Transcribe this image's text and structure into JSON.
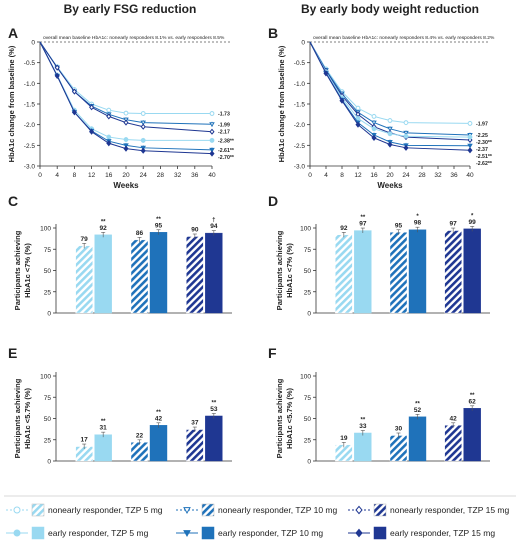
{
  "headings": {
    "left": "By early FSG reduction",
    "right": "By early body weight reduction"
  },
  "colors": {
    "tzp5": "#99d9f1",
    "tzp10": "#1f72ba",
    "tzp15": "#1f3792",
    "axis": "#333333",
    "text": "#222222"
  },
  "legend": [
    {
      "label": "nonearly responder, TZP 5 mg",
      "dose": "tzp5",
      "group": "nonearly",
      "marker": "circle"
    },
    {
      "label": "nonearly responder, TZP 10 mg",
      "dose": "tzp10",
      "group": "nonearly",
      "marker": "triangle"
    },
    {
      "label": "nonearly responder, TZP 15 mg",
      "dose": "tzp15",
      "group": "nonearly",
      "marker": "diamond"
    },
    {
      "label": "early responder, TZP 5 mg",
      "dose": "tzp5",
      "group": "early",
      "marker": "circle"
    },
    {
      "label": "early responder, TZP 10 mg",
      "dose": "tzp10",
      "group": "early",
      "marker": "triangle"
    },
    {
      "label": "early responder, TZP 15 mg",
      "dose": "tzp15",
      "group": "early",
      "marker": "diamond"
    }
  ],
  "chart_data": [
    {
      "panel": "A",
      "type": "line",
      "title": "By early FSG reduction",
      "xlabel": "Weeks",
      "ylabel": "HbA1c change from baseline (%)",
      "annotation": "overall mean baseline HbA1c: nonearly responders 8.1% vs. early responders 8.5%",
      "x": [
        0,
        4,
        8,
        12,
        16,
        20,
        24,
        28,
        32,
        36,
        40
      ],
      "xlim": [
        0,
        40
      ],
      "ylim": [
        -3.0,
        0
      ],
      "yticks": [
        0,
        -0.5,
        -1.0,
        -1.5,
        -2.0,
        -2.5,
        -3.0
      ],
      "series": [
        {
          "dose": "tzp5",
          "group": "nonearly",
          "x": [
            0,
            4,
            8,
            12,
            16,
            20,
            24,
            40
          ],
          "y": [
            0,
            -0.6,
            -1.15,
            -1.5,
            -1.65,
            -1.72,
            -1.73,
            -1.73
          ],
          "end_label": "-1.73"
        },
        {
          "dose": "tzp10",
          "group": "nonearly",
          "x": [
            0,
            4,
            8,
            12,
            16,
            20,
            24,
            40
          ],
          "y": [
            0,
            -0.62,
            -1.2,
            -1.55,
            -1.75,
            -1.88,
            -1.95,
            -1.99
          ],
          "end_label": "-1.99"
        },
        {
          "dose": "tzp15",
          "group": "nonearly",
          "x": [
            0,
            4,
            8,
            12,
            16,
            20,
            24,
            40
          ],
          "y": [
            0,
            -0.62,
            -1.2,
            -1.58,
            -1.8,
            -1.95,
            -2.05,
            -2.17
          ],
          "end_label": "-2.17"
        },
        {
          "dose": "tzp5",
          "group": "early",
          "x": [
            0,
            4,
            8,
            12,
            16,
            20,
            24,
            40
          ],
          "y": [
            0,
            -0.8,
            -1.65,
            -2.1,
            -2.3,
            -2.36,
            -2.38,
            -2.38
          ],
          "end_label": "-2.38**"
        },
        {
          "dose": "tzp10",
          "group": "early",
          "x": [
            0,
            4,
            8,
            12,
            16,
            20,
            24,
            40
          ],
          "y": [
            0,
            -0.82,
            -1.7,
            -2.15,
            -2.4,
            -2.5,
            -2.56,
            -2.61
          ],
          "end_label": "-2.61**"
        },
        {
          "dose": "tzp15",
          "group": "early",
          "x": [
            0,
            4,
            8,
            12,
            16,
            20,
            24,
            40
          ],
          "y": [
            0,
            -0.82,
            -1.7,
            -2.17,
            -2.45,
            -2.58,
            -2.63,
            -2.7
          ],
          "end_label": "-2.70**"
        }
      ]
    },
    {
      "panel": "B",
      "type": "line",
      "title": "By early body weight reduction",
      "xlabel": "Weeks",
      "ylabel": "HbA1c change from baseline (%)",
      "annotation": "overall mean baseline HbA1c: nonearly responders 8.4% vs. early responders 8.2%",
      "x": [
        0,
        4,
        8,
        12,
        16,
        20,
        24,
        28,
        32,
        36,
        40
      ],
      "xlim": [
        0,
        40
      ],
      "ylim": [
        -3.0,
        0
      ],
      "yticks": [
        0,
        -0.5,
        -1.0,
        -1.5,
        -2.0,
        -2.5,
        -3.0
      ],
      "series": [
        {
          "dose": "tzp5",
          "group": "nonearly",
          "x": [
            0,
            4,
            8,
            12,
            16,
            20,
            24,
            40
          ],
          "y": [
            0,
            -0.65,
            -1.2,
            -1.6,
            -1.8,
            -1.9,
            -1.95,
            -1.97
          ],
          "end_label": "-1.97"
        },
        {
          "dose": "tzp10",
          "group": "nonearly",
          "x": [
            0,
            4,
            8,
            12,
            16,
            20,
            24,
            40
          ],
          "y": [
            0,
            -0.68,
            -1.25,
            -1.7,
            -1.95,
            -2.1,
            -2.2,
            -2.25
          ],
          "end_label": "-2.25"
        },
        {
          "dose": "tzp15",
          "group": "nonearly",
          "x": [
            0,
            4,
            8,
            12,
            16,
            20,
            24,
            40
          ],
          "y": [
            0,
            -0.7,
            -1.3,
            -1.75,
            -2.05,
            -2.2,
            -2.3,
            -2.37
          ],
          "end_label": "-2.37"
        },
        {
          "dose": "tzp5",
          "group": "early",
          "x": [
            0,
            4,
            8,
            12,
            16,
            20,
            24,
            40
          ],
          "y": [
            0,
            -0.72,
            -1.35,
            -1.85,
            -2.1,
            -2.22,
            -2.28,
            -2.3
          ],
          "end_label": "-2.30**"
        },
        {
          "dose": "tzp10",
          "group": "early",
          "x": [
            0,
            4,
            8,
            12,
            16,
            20,
            24,
            40
          ],
          "y": [
            0,
            -0.75,
            -1.4,
            -1.95,
            -2.25,
            -2.42,
            -2.5,
            -2.51
          ],
          "end_label": "-2.51**"
        },
        {
          "dose": "tzp15",
          "group": "early",
          "x": [
            0,
            4,
            8,
            12,
            16,
            20,
            24,
            40
          ],
          "y": [
            0,
            -0.76,
            -1.42,
            -2.0,
            -2.32,
            -2.48,
            -2.56,
            -2.62
          ],
          "end_label": "-2.62**"
        }
      ]
    },
    {
      "panel": "C",
      "type": "bar",
      "ylabel": "Participants achieving HbA1c <7% (%)",
      "ylim": [
        0,
        100
      ],
      "yticks": [
        0,
        25,
        50,
        75,
        100
      ],
      "groups": [
        "TZP 5 mg",
        "TZP 10 mg",
        "TZP 15 mg"
      ],
      "bars": [
        {
          "dose": "tzp5",
          "group": "nonearly",
          "value": 79,
          "label": "79",
          "sig": ""
        },
        {
          "dose": "tzp5",
          "group": "early",
          "value": 92,
          "label": "92",
          "sig": "**"
        },
        {
          "dose": "tzp10",
          "group": "nonearly",
          "value": 86,
          "label": "86",
          "sig": ""
        },
        {
          "dose": "tzp10",
          "group": "early",
          "value": 95,
          "label": "95",
          "sig": "**"
        },
        {
          "dose": "tzp15",
          "group": "nonearly",
          "value": 90,
          "label": "90",
          "sig": ""
        },
        {
          "dose": "tzp15",
          "group": "early",
          "value": 94,
          "label": "94",
          "sig": "†"
        }
      ]
    },
    {
      "panel": "D",
      "type": "bar",
      "ylabel": "Participants achieving HbA1c <7% (%)",
      "ylim": [
        0,
        100
      ],
      "yticks": [
        0,
        25,
        50,
        75,
        100
      ],
      "groups": [
        "TZP 5 mg",
        "TZP 10 mg",
        "TZP 15 mg"
      ],
      "bars": [
        {
          "dose": "tzp5",
          "group": "nonearly",
          "value": 92,
          "label": "92",
          "sig": ""
        },
        {
          "dose": "tzp5",
          "group": "early",
          "value": 97,
          "label": "97",
          "sig": "**"
        },
        {
          "dose": "tzp10",
          "group": "nonearly",
          "value": 95,
          "label": "95",
          "sig": ""
        },
        {
          "dose": "tzp10",
          "group": "early",
          "value": 98,
          "label": "98",
          "sig": "*"
        },
        {
          "dose": "tzp15",
          "group": "nonearly",
          "value": 97,
          "label": "97",
          "sig": ""
        },
        {
          "dose": "tzp15",
          "group": "early",
          "value": 99,
          "label": "99",
          "sig": "*"
        }
      ]
    },
    {
      "panel": "E",
      "type": "bar",
      "ylabel": "Participants achieving HbA1c <5.7% (%)",
      "ylim": [
        0,
        100
      ],
      "yticks": [
        0,
        25,
        50,
        75,
        100
      ],
      "groups": [
        "TZP 5 mg",
        "TZP 10 mg",
        "TZP 15 mg"
      ],
      "bars": [
        {
          "dose": "tzp5",
          "group": "nonearly",
          "value": 17,
          "label": "17",
          "sig": ""
        },
        {
          "dose": "tzp5",
          "group": "early",
          "value": 31,
          "label": "31",
          "sig": "**"
        },
        {
          "dose": "tzp10",
          "group": "nonearly",
          "value": 22,
          "label": "22",
          "sig": ""
        },
        {
          "dose": "tzp10",
          "group": "early",
          "value": 42,
          "label": "42",
          "sig": "**"
        },
        {
          "dose": "tzp15",
          "group": "nonearly",
          "value": 37,
          "label": "37",
          "sig": ""
        },
        {
          "dose": "tzp15",
          "group": "early",
          "value": 53,
          "label": "53",
          "sig": "**"
        }
      ]
    },
    {
      "panel": "F",
      "type": "bar",
      "ylabel": "Participants achieving HbA1c <5.7% (%)",
      "ylim": [
        0,
        100
      ],
      "yticks": [
        0,
        25,
        50,
        75,
        100
      ],
      "groups": [
        "TZP 5 mg",
        "TZP 10 mg",
        "TZP 15 mg"
      ],
      "bars": [
        {
          "dose": "tzp5",
          "group": "nonearly",
          "value": 19,
          "label": "19",
          "sig": ""
        },
        {
          "dose": "tzp5",
          "group": "early",
          "value": 33,
          "label": "33",
          "sig": "**"
        },
        {
          "dose": "tzp10",
          "group": "nonearly",
          "value": 30,
          "label": "30",
          "sig": ""
        },
        {
          "dose": "tzp10",
          "group": "early",
          "value": 52,
          "label": "52",
          "sig": "**"
        },
        {
          "dose": "tzp15",
          "group": "nonearly",
          "value": 42,
          "label": "42",
          "sig": ""
        },
        {
          "dose": "tzp15",
          "group": "early",
          "value": 62,
          "label": "62",
          "sig": "**"
        }
      ]
    }
  ]
}
